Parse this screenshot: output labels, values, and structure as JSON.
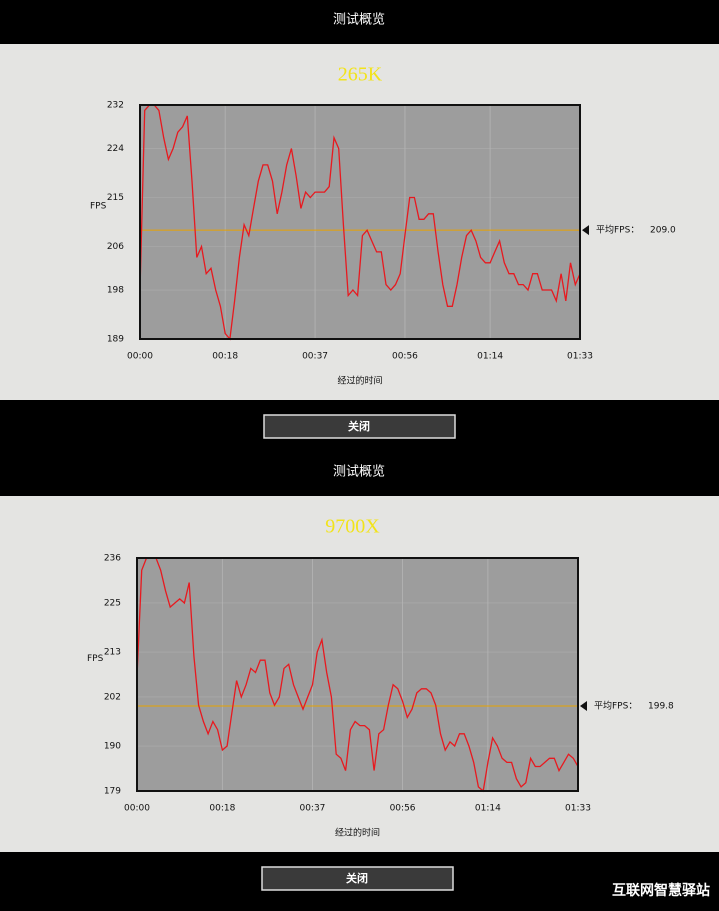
{
  "panels": [
    {
      "header": "测试概览",
      "button": "关闭"
    },
    {
      "header": "测试概览",
      "button": "关闭"
    }
  ],
  "watermark": "互联网智慧驿站",
  "chart_data": [
    {
      "type": "line",
      "title": "265K",
      "ylabel": "FPS",
      "xlabel": "经过的时间",
      "color": "#e8191f",
      "x": [
        0,
        1,
        2,
        3,
        4,
        5,
        6,
        7,
        8,
        9,
        10,
        11,
        12,
        13,
        14,
        15,
        16,
        17,
        18,
        19,
        20,
        21,
        22,
        23,
        24,
        25,
        26,
        27,
        28,
        29,
        30,
        31,
        32,
        33,
        34,
        35,
        36,
        37,
        38,
        39,
        40,
        41,
        42,
        43,
        44,
        45,
        46,
        47,
        48,
        49,
        50,
        51,
        52,
        53,
        54,
        55,
        56,
        57,
        58,
        59,
        60,
        61,
        62,
        63,
        64,
        65,
        66,
        67,
        68,
        69,
        70,
        71,
        72,
        73,
        74,
        75,
        76,
        77,
        78,
        79,
        80,
        81,
        82,
        83,
        84,
        85,
        86,
        87,
        88,
        89,
        90,
        91,
        92,
        93
      ],
      "values": [
        198,
        231,
        232,
        232,
        231,
        226,
        222,
        224,
        227,
        228,
        230,
        218,
        204,
        206,
        201,
        202,
        198,
        195,
        190,
        189,
        196,
        204,
        210,
        208,
        213,
        218,
        221,
        221,
        218,
        212,
        216,
        221,
        224,
        219,
        213,
        216,
        215,
        216,
        216,
        216,
        217,
        226,
        224,
        210,
        197,
        198,
        197,
        208,
        209,
        207,
        205,
        205,
        199,
        198,
        199,
        201,
        208,
        215,
        215,
        211,
        211,
        212,
        212,
        205,
        199,
        195,
        195,
        199,
        204,
        208,
        209,
        207,
        204,
        203,
        203,
        205,
        207,
        203,
        201,
        201,
        199,
        199,
        198,
        201,
        201,
        198,
        198,
        198,
        196,
        201,
        196,
        203,
        199,
        201
      ],
      "xlim": [
        0,
        93
      ],
      "ylim": [
        189,
        232
      ],
      "yticks": [
        189,
        198,
        206,
        215,
        224,
        232
      ],
      "xticks": [
        {
          "value": 0,
          "label": "00:00"
        },
        {
          "value": 18,
          "label": "00:18"
        },
        {
          "value": 37,
          "label": "00:37"
        },
        {
          "value": 56,
          "label": "00:56"
        },
        {
          "value": 74,
          "label": "01:14"
        },
        {
          "value": 93,
          "label": "01:33"
        }
      ],
      "grid": true,
      "average": {
        "name": "平均FPS：",
        "value": 209,
        "label": "209.0",
        "color": "#e8a200"
      }
    },
    {
      "type": "line",
      "title": "9700X",
      "ylabel": "FPS",
      "xlabel": "经过的时间",
      "color": "#e8191f",
      "x": [
        0,
        1,
        2,
        3,
        4,
        5,
        6,
        7,
        8,
        9,
        10,
        11,
        12,
        13,
        14,
        15,
        16,
        17,
        18,
        19,
        20,
        21,
        22,
        23,
        24,
        25,
        26,
        27,
        28,
        29,
        30,
        31,
        32,
        33,
        34,
        35,
        36,
        37,
        38,
        39,
        40,
        41,
        42,
        43,
        44,
        45,
        46,
        47,
        48,
        49,
        50,
        51,
        52,
        53,
        54,
        55,
        56,
        57,
        58,
        59,
        60,
        61,
        62,
        63,
        64,
        65,
        66,
        67,
        68,
        69,
        70,
        71,
        72,
        73,
        74,
        75,
        76,
        77,
        78,
        79,
        80,
        81,
        82,
        83,
        84,
        85,
        86,
        87,
        88,
        89,
        90,
        91,
        92,
        93
      ],
      "values": [
        207,
        233,
        236,
        236,
        236,
        233,
        228,
        224,
        225,
        226,
        225,
        230,
        212,
        200,
        196,
        193,
        196,
        194,
        189,
        190,
        198,
        206,
        202,
        205,
        209,
        208,
        211,
        211,
        203,
        200,
        202,
        209,
        210,
        205,
        202,
        199,
        202,
        205,
        213,
        216,
        208,
        202,
        188,
        187,
        184,
        194,
        196,
        195,
        195,
        194,
        184,
        193,
        194,
        200,
        205,
        204,
        201,
        197,
        199,
        203,
        204,
        204,
        203,
        200,
        193,
        189,
        191,
        190,
        193,
        193,
        190,
        186,
        180,
        179,
        186,
        192,
        190,
        187,
        186,
        186,
        182,
        180,
        181,
        187,
        185,
        185,
        186,
        187,
        187,
        184,
        186,
        188,
        187,
        185
      ],
      "xlim": [
        0,
        93
      ],
      "ylim": [
        179,
        236
      ],
      "yticks": [
        179,
        190,
        202,
        213,
        225,
        236
      ],
      "xticks": [
        {
          "value": 0,
          "label": "00:00"
        },
        {
          "value": 18,
          "label": "00:18"
        },
        {
          "value": 37,
          "label": "00:37"
        },
        {
          "value": 56,
          "label": "00:56"
        },
        {
          "value": 74,
          "label": "01:14"
        },
        {
          "value": 93,
          "label": "01:33"
        }
      ],
      "grid": true,
      "average": {
        "name": "平均FPS：",
        "value": 199.8,
        "label": "199.8",
        "color": "#e8a200"
      }
    }
  ]
}
